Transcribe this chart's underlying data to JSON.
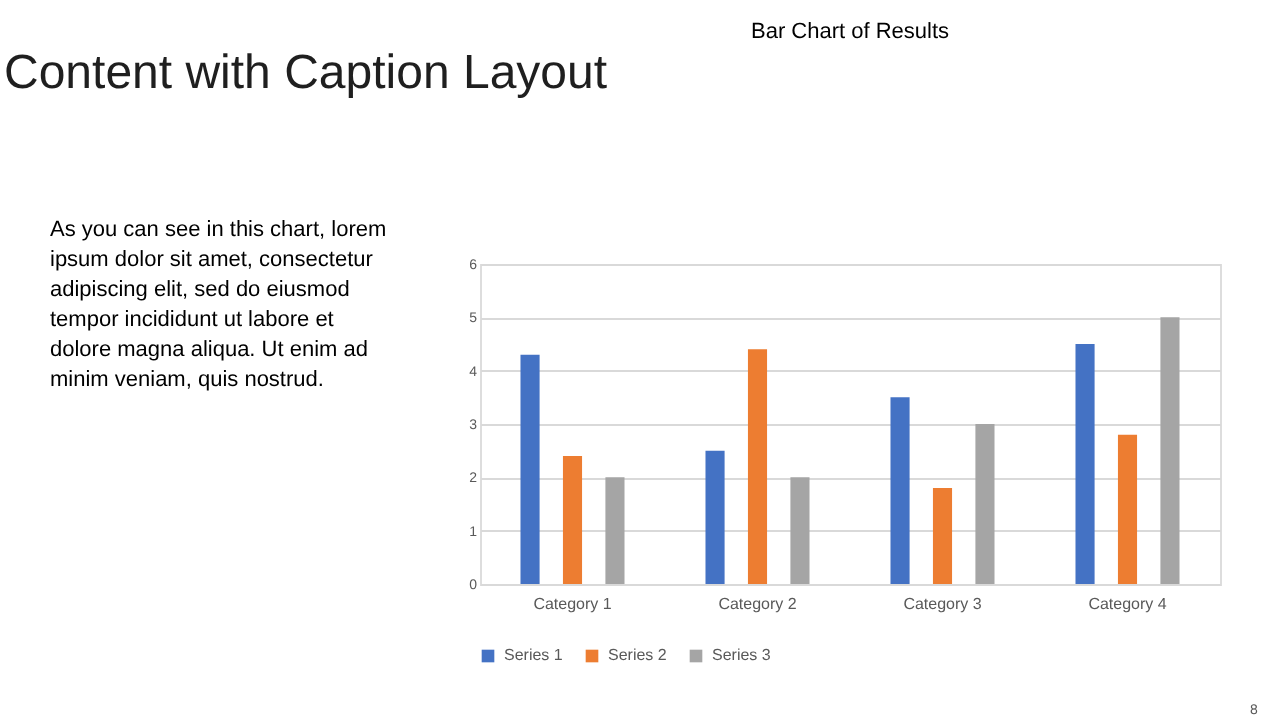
{
  "chart_data": {
    "type": "bar",
    "title": "Bar Chart of Results",
    "categories": [
      "Category 1",
      "Category 2",
      "Category 3",
      "Category 4"
    ],
    "series": [
      {
        "name": "Series 1",
        "color": "#4472c4",
        "values": [
          4.3,
          2.5,
          3.5,
          4.5
        ]
      },
      {
        "name": "Series 2",
        "color": "#ed7d31",
        "values": [
          2.4,
          4.4,
          1.8,
          2.8
        ]
      },
      {
        "name": "Series 3",
        "color": "#a5a5a5",
        "values": [
          2,
          2,
          3,
          5
        ]
      }
    ],
    "ylim": [
      0,
      6
    ],
    "yticks": [
      0,
      1,
      2,
      3,
      4,
      5,
      6
    ],
    "grid": "y",
    "legend": "bottom",
    "annotations": [
      "Content with Caption Layout",
      "As you can see in this chart, lorem",
      "ipsum dolor sit amet, consectetur",
      "adipiscing elit, sed do eiusmod",
      "tempor incididunt ut labore et",
      "dolore magna aliqua. Ut enim ad",
      "minim veniam, quis nostrud.",
      "8"
    ]
  }
}
